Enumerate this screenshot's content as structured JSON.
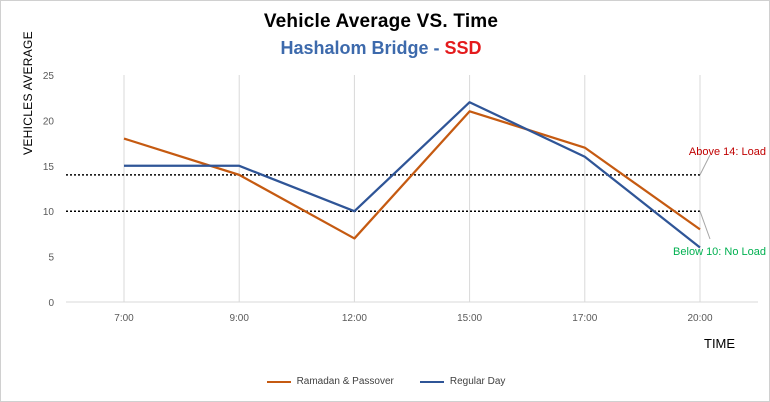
{
  "chart_data": {
    "type": "line",
    "title": "Vehicle  Average  VS.  Time",
    "subtitle_parts": {
      "location": "Hashalom  Bridge",
      "separator": " - ",
      "method": "SSD"
    },
    "xlabel": "TIME",
    "ylabel": "VEHICLES AVERAGE",
    "categories": [
      "7:00",
      "9:00",
      "12:00",
      "15:00",
      "17:00",
      "20:00"
    ],
    "ylim": [
      0,
      25
    ],
    "yticks": [
      "0",
      "5",
      "10",
      "15",
      "20",
      "25"
    ],
    "grid": "vertical",
    "legend_position": "bottom",
    "series": [
      {
        "name": "Ramadan & Passover",
        "color": "#c55a11",
        "values": [
          18,
          14,
          7,
          21,
          17,
          8
        ]
      },
      {
        "name": "Regular Day",
        "color": "#2f5597",
        "values": [
          15,
          15,
          10,
          22,
          16,
          6
        ]
      }
    ],
    "thresholds": [
      {
        "value": 14,
        "label": "Above 14: Load",
        "color": "#c00000"
      },
      {
        "value": 10,
        "label": "Below 10: No Load",
        "color": "#00b050"
      }
    ]
  }
}
